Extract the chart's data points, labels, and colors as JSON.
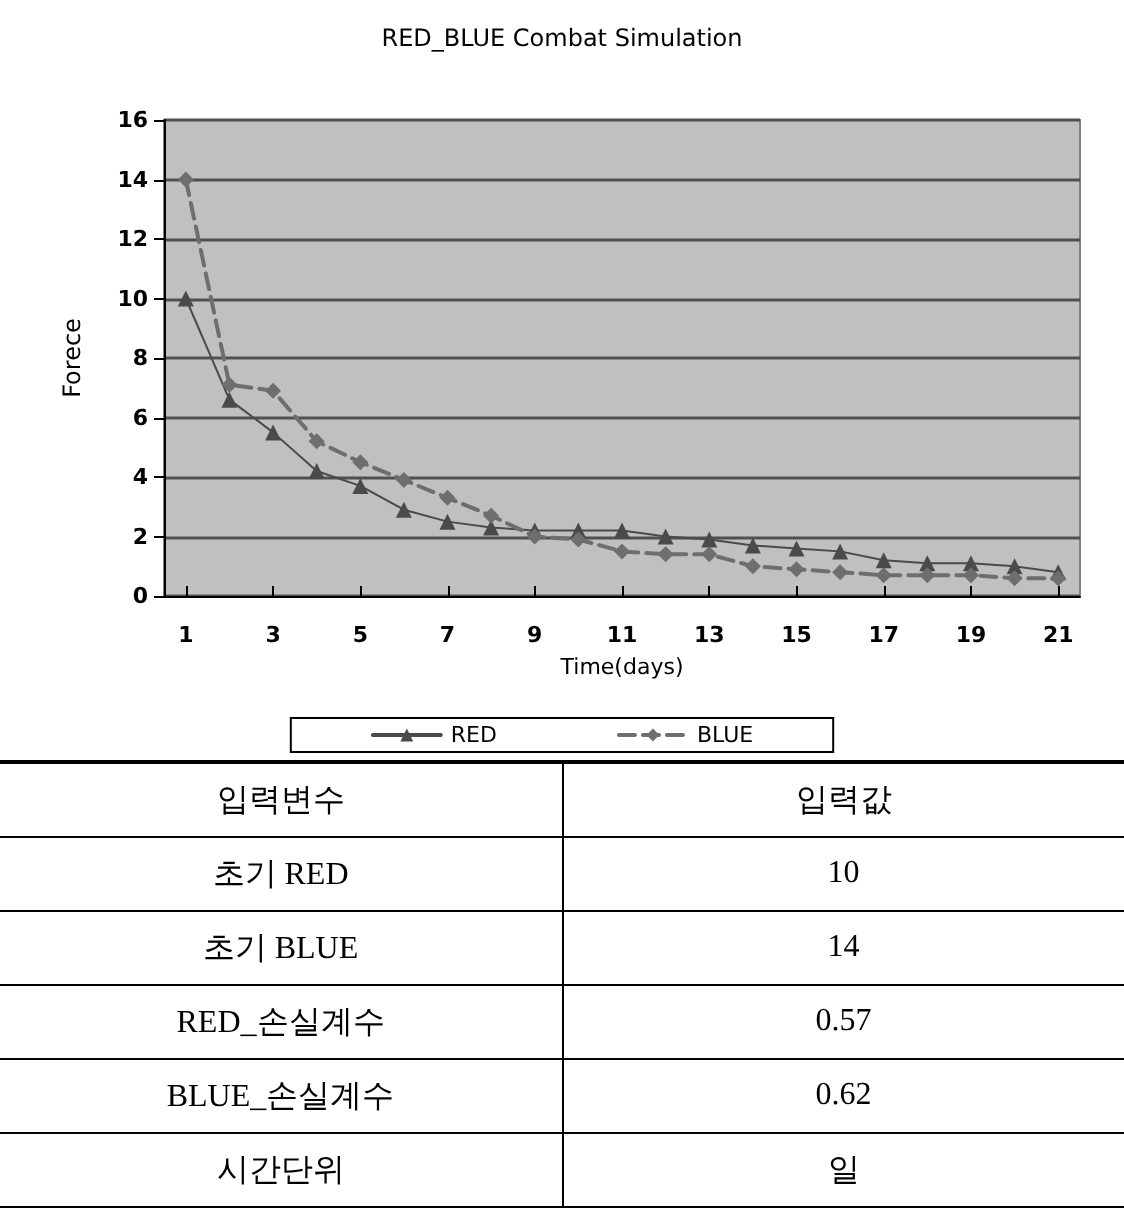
{
  "chart_data": [
    {
      "type": "line",
      "title": "RED_BLUE Combat Simulation",
      "xlabel": "Time(days)",
      "ylabel": "Forece",
      "x": [
        1,
        2,
        3,
        4,
        5,
        6,
        7,
        8,
        9,
        10,
        11,
        12,
        13,
        14,
        15,
        16,
        17,
        18,
        19,
        20,
        21
      ],
      "xlim": [
        0.5,
        21.5
      ],
      "xticks": [
        1,
        3,
        5,
        7,
        9,
        11,
        13,
        15,
        17,
        19,
        21
      ],
      "series": [
        {
          "name": "RED",
          "color": "#4a4a4a",
          "marker": "triangle",
          "line_style": "solid",
          "values": [
            10,
            6.6,
            5.5,
            4.2,
            3.7,
            2.9,
            2.5,
            2.3,
            2.2,
            2.2,
            2.2,
            2.0,
            1.9,
            1.7,
            1.6,
            1.5,
            1.2,
            1.1,
            1.1,
            1.0,
            0.8
          ]
        },
        {
          "name": "BLUE",
          "color": "#6e6e6e",
          "marker": "diamond",
          "line_style": "dashed",
          "values": [
            14,
            7.1,
            6.9,
            5.2,
            4.5,
            3.9,
            3.3,
            2.7,
            2.0,
            1.9,
            1.5,
            1.4,
            1.4,
            1.0,
            0.9,
            0.8,
            0.7,
            0.7,
            0.7,
            0.6,
            0.6
          ]
        }
      ],
      "ylim": [
        0,
        16
      ],
      "yticks": [
        0,
        2,
        4,
        6,
        8,
        10,
        12,
        14,
        16
      ],
      "grid": "y",
      "legend": "bottom"
    },
    {
      "type": "other",
      "categories": [
        "입력변수",
        "입력값"
      ],
      "y_categories": [
        "초기 RED",
        "초기 BLUE",
        "RED_손실계수",
        "BLUE_손실계수",
        "시간단위"
      ],
      "cell_labels": [
        [
          "10"
        ],
        [
          "14"
        ],
        [
          "0.57"
        ],
        [
          "0.62"
        ],
        [
          "일"
        ]
      ]
    }
  ]
}
